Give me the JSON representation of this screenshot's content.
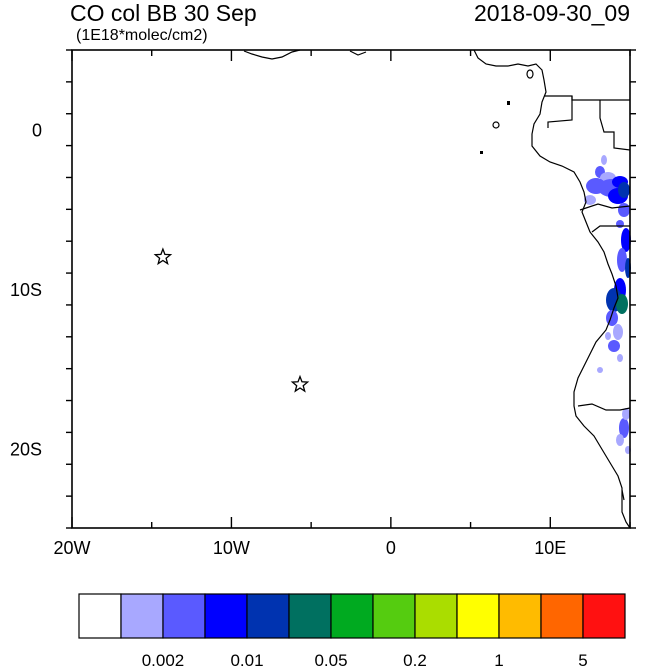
{
  "title": {
    "left": "CO col BB 30 Sep",
    "right": "2018-09-30_09",
    "units": "(1E18*molec/cm2)"
  },
  "axes": {
    "lon_range": [
      -20,
      15
    ],
    "lat_range": [
      -25,
      5
    ],
    "x_ticks": [
      {
        "value": -20,
        "label": "20W"
      },
      {
        "value": -10,
        "label": "10W"
      },
      {
        "value": 0,
        "label": "0"
      },
      {
        "value": 10,
        "label": "10E"
      }
    ],
    "y_ticks": [
      {
        "value": 0,
        "label": "0"
      },
      {
        "value": -10,
        "label": "10S"
      },
      {
        "value": -20,
        "label": "20S"
      }
    ]
  },
  "markers": [
    {
      "name": "star-marker-1",
      "lon": -14.3,
      "lat": -8.0
    },
    {
      "name": "star-marker-2",
      "lon": -5.7,
      "lat": -16.0
    }
  ],
  "colorbar": {
    "colors": [
      "#ffffff",
      "#a8a8ff",
      "#5a5aff",
      "#0000ff",
      "#0033b0",
      "#007060",
      "#00aa20",
      "#55cc10",
      "#aadd00",
      "#ffff00",
      "#ffbb00",
      "#ff6600",
      "#ff1111"
    ],
    "labels": [
      {
        "after_box": 2,
        "text": "0.002"
      },
      {
        "after_box": 4,
        "text": "0.01"
      },
      {
        "after_box": 6,
        "text": "0.05"
      },
      {
        "after_box": 8,
        "text": "0.2"
      },
      {
        "after_box": 10,
        "text": "1"
      },
      {
        "after_box": 12,
        "text": "5"
      }
    ]
  },
  "plume_colors": {
    "light": "#a8a8ff",
    "medium": "#5a5aff",
    "blue": "#0000ff",
    "dark": "#0033b0",
    "teal": "#007060"
  }
}
